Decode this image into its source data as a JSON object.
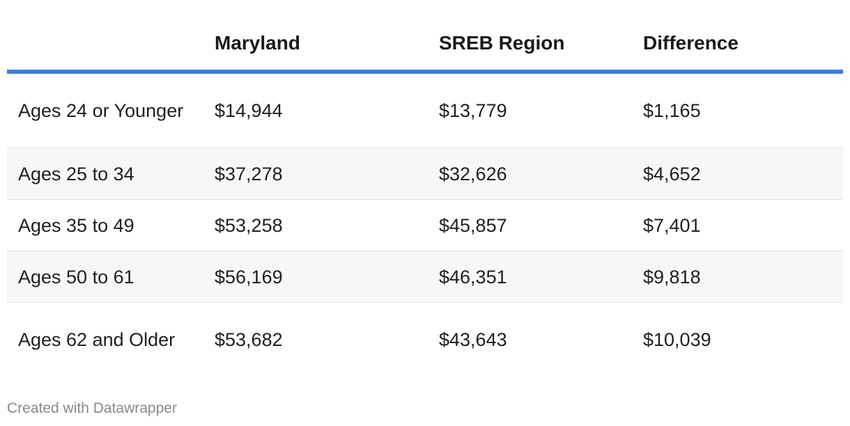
{
  "chart_data": {
    "type": "table",
    "columns": [
      "",
      "Maryland",
      "SREB Region",
      "Difference"
    ],
    "rows": [
      {
        "label": "Ages 24 or Younger",
        "maryland": "$14,944",
        "sreb": "$13,779",
        "difference": "$1,165"
      },
      {
        "label": "Ages 25 to 34",
        "maryland": "$37,278",
        "sreb": "$32,626",
        "difference": "$4,652"
      },
      {
        "label": "Ages 35 to 49",
        "maryland": "$53,258",
        "sreb": "$45,857",
        "difference": "$7,401"
      },
      {
        "label": "Ages 50 to 61",
        "maryland": "$56,169",
        "sreb": "$46,351",
        "difference": "$9,818"
      },
      {
        "label": "Ages 62 and Older",
        "maryland": "$53,682",
        "sreb": "$43,643",
        "difference": "$10,039"
      }
    ]
  },
  "colors": {
    "header_rule": "#3b82d6",
    "zebra": "#f7f7f7"
  },
  "footer": {
    "credit": "Created with Datawrapper"
  }
}
